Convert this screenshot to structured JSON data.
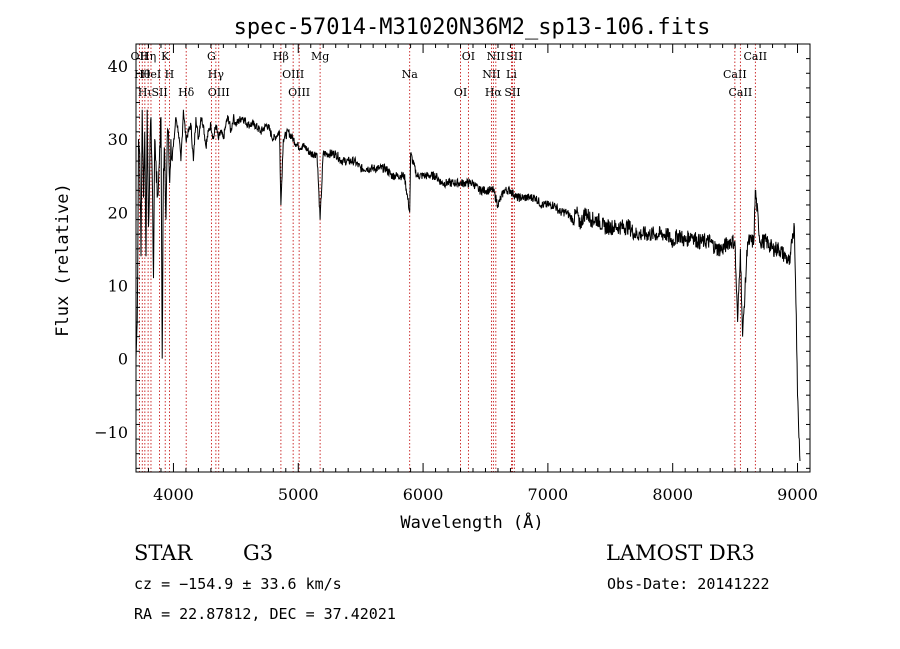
{
  "chart_data": {
    "type": "line",
    "title": "spec-57014-M31020N36M2_sp13-106.fits",
    "xlabel": "Wavelength (Å)",
    "ylabel": "Flux (relative)",
    "xlim": [
      3700,
      9100
    ],
    "ylim": [
      -15.5,
      43
    ],
    "xticks": [
      4000,
      5000,
      6000,
      7000,
      8000,
      9000
    ],
    "yticks": [
      -10,
      0,
      10,
      20,
      30,
      40
    ],
    "grid": false,
    "series": [
      {
        "name": "flux",
        "x": [
          3700,
          3710,
          3720,
          3730,
          3740,
          3750,
          3760,
          3770,
          3780,
          3790,
          3800,
          3810,
          3820,
          3830,
          3840,
          3850,
          3860,
          3870,
          3880,
          3890,
          3900,
          3910,
          3920,
          3930,
          3940,
          3950,
          3960,
          3970,
          3980,
          3990,
          4000,
          4020,
          4040,
          4060,
          4080,
          4100,
          4120,
          4140,
          4160,
          4180,
          4200,
          4220,
          4240,
          4260,
          4280,
          4300,
          4320,
          4340,
          4360,
          4380,
          4400,
          4420,
          4440,
          4460,
          4480,
          4500,
          4550,
          4600,
          4650,
          4700,
          4750,
          4800,
          4850,
          4861,
          4880,
          4920,
          4960,
          5000,
          5050,
          5100,
          5150,
          5175,
          5200,
          5250,
          5300,
          5350,
          5400,
          5450,
          5500,
          5550,
          5600,
          5650,
          5700,
          5750,
          5800,
          5850,
          5893,
          5900,
          5950,
          6000,
          6050,
          6100,
          6150,
          6200,
          6250,
          6300,
          6350,
          6400,
          6450,
          6500,
          6540,
          6563,
          6600,
          6650,
          6700,
          6750,
          6800,
          6850,
          6900,
          6950,
          7000,
          7050,
          7100,
          7150,
          7200,
          7240,
          7250,
          7300,
          7350,
          7400,
          7450,
          7500,
          7550,
          7600,
          7650,
          7700,
          7750,
          7800,
          7850,
          7900,
          7950,
          8000,
          8050,
          8100,
          8150,
          8200,
          8250,
          8300,
          8350,
          8400,
          8450,
          8498,
          8520,
          8542,
          8560,
          8600,
          8650,
          8662,
          8700,
          8750,
          8800,
          8850,
          8900,
          8940,
          8960,
          8975,
          8990,
          9000,
          9020
        ],
        "values": [
          0,
          5,
          30,
          28,
          14,
          34,
          22,
          31,
          14,
          34,
          18,
          26,
          33,
          25,
          11,
          30,
          27,
          22,
          24,
          29,
          33,
          0,
          26,
          28,
          19,
          30,
          31,
          24,
          30,
          27,
          29,
          33,
          31,
          27,
          34,
          30,
          31,
          32,
          27,
          33,
          30,
          33,
          32,
          29,
          31,
          32,
          30,
          32,
          30,
          31,
          30,
          32,
          33,
          31,
          33,
          32,
          33,
          32,
          32,
          31,
          32,
          30,
          31,
          21,
          30,
          31,
          30,
          29,
          29,
          28,
          28,
          19,
          28,
          28,
          28,
          27,
          27,
          27,
          26,
          26,
          26,
          26,
          26,
          25,
          25,
          25,
          20,
          28,
          25,
          25,
          25,
          25,
          24,
          24,
          24,
          24,
          24,
          24,
          23,
          23,
          23,
          23,
          21,
          23,
          23,
          22,
          22,
          22,
          22,
          21,
          21,
          21,
          20,
          20,
          19,
          20,
          18,
          20,
          19,
          19,
          18,
          18,
          18,
          18,
          18,
          17,
          17,
          17,
          17,
          17,
          17,
          16,
          17,
          16,
          17,
          16,
          16,
          16,
          15,
          15,
          16,
          16,
          5,
          15,
          3,
          16,
          16,
          23,
          16,
          16,
          15,
          15,
          14,
          13,
          17,
          18,
          6,
          -5,
          -14
        ]
      }
    ],
    "lines": [
      {
        "wl": 3727,
        "label": "OII"
      },
      {
        "wl": 3750,
        "label": "Hθ"
      },
      {
        "wl": 3771,
        "label": "Hι"
      },
      {
        "wl": 3797,
        "label": "Hη"
      },
      {
        "wl": 3820,
        "label": "HeI"
      },
      {
        "wl": 3889,
        "label": "SII"
      },
      {
        "wl": 3934,
        "label": "K"
      },
      {
        "wl": 3968,
        "label": "H"
      },
      {
        "wl": 4102,
        "label": "Hδ"
      },
      {
        "wl": 4304,
        "label": "G"
      },
      {
        "wl": 4340,
        "label": "Hγ"
      },
      {
        "wl": 4363,
        "label": "OIII"
      },
      {
        "wl": 4861,
        "label": "Hβ"
      },
      {
        "wl": 4959,
        "label": "OIII"
      },
      {
        "wl": 5007,
        "label": "OIII"
      },
      {
        "wl": 5175,
        "label": "Mg"
      },
      {
        "wl": 5893,
        "label": "Na"
      },
      {
        "wl": 6300,
        "label": "OI"
      },
      {
        "wl": 6363,
        "label": "OI"
      },
      {
        "wl": 6548,
        "label": "NII"
      },
      {
        "wl": 6563,
        "label": "Hα"
      },
      {
        "wl": 6583,
        "label": "NII"
      },
      {
        "wl": 6708,
        "label": "Li"
      },
      {
        "wl": 6716,
        "label": "SII"
      },
      {
        "wl": 6731,
        "label": "SII"
      },
      {
        "wl": 8498,
        "label": "CaII"
      },
      {
        "wl": 8542,
        "label": "CaII"
      },
      {
        "wl": 8662,
        "label": "CaII"
      }
    ]
  },
  "info": {
    "class": "STAR",
    "subclass": "G3",
    "survey": "LAMOST DR3",
    "cz": "cz = −154.9 ± 33.6 km/s",
    "obs_date": "Obs-Date: 20141222",
    "coords": "RA =  22.87812, DEC =  37.42021"
  },
  "colors": {
    "spectrum": "#000000",
    "line_marker": "#c00000"
  }
}
